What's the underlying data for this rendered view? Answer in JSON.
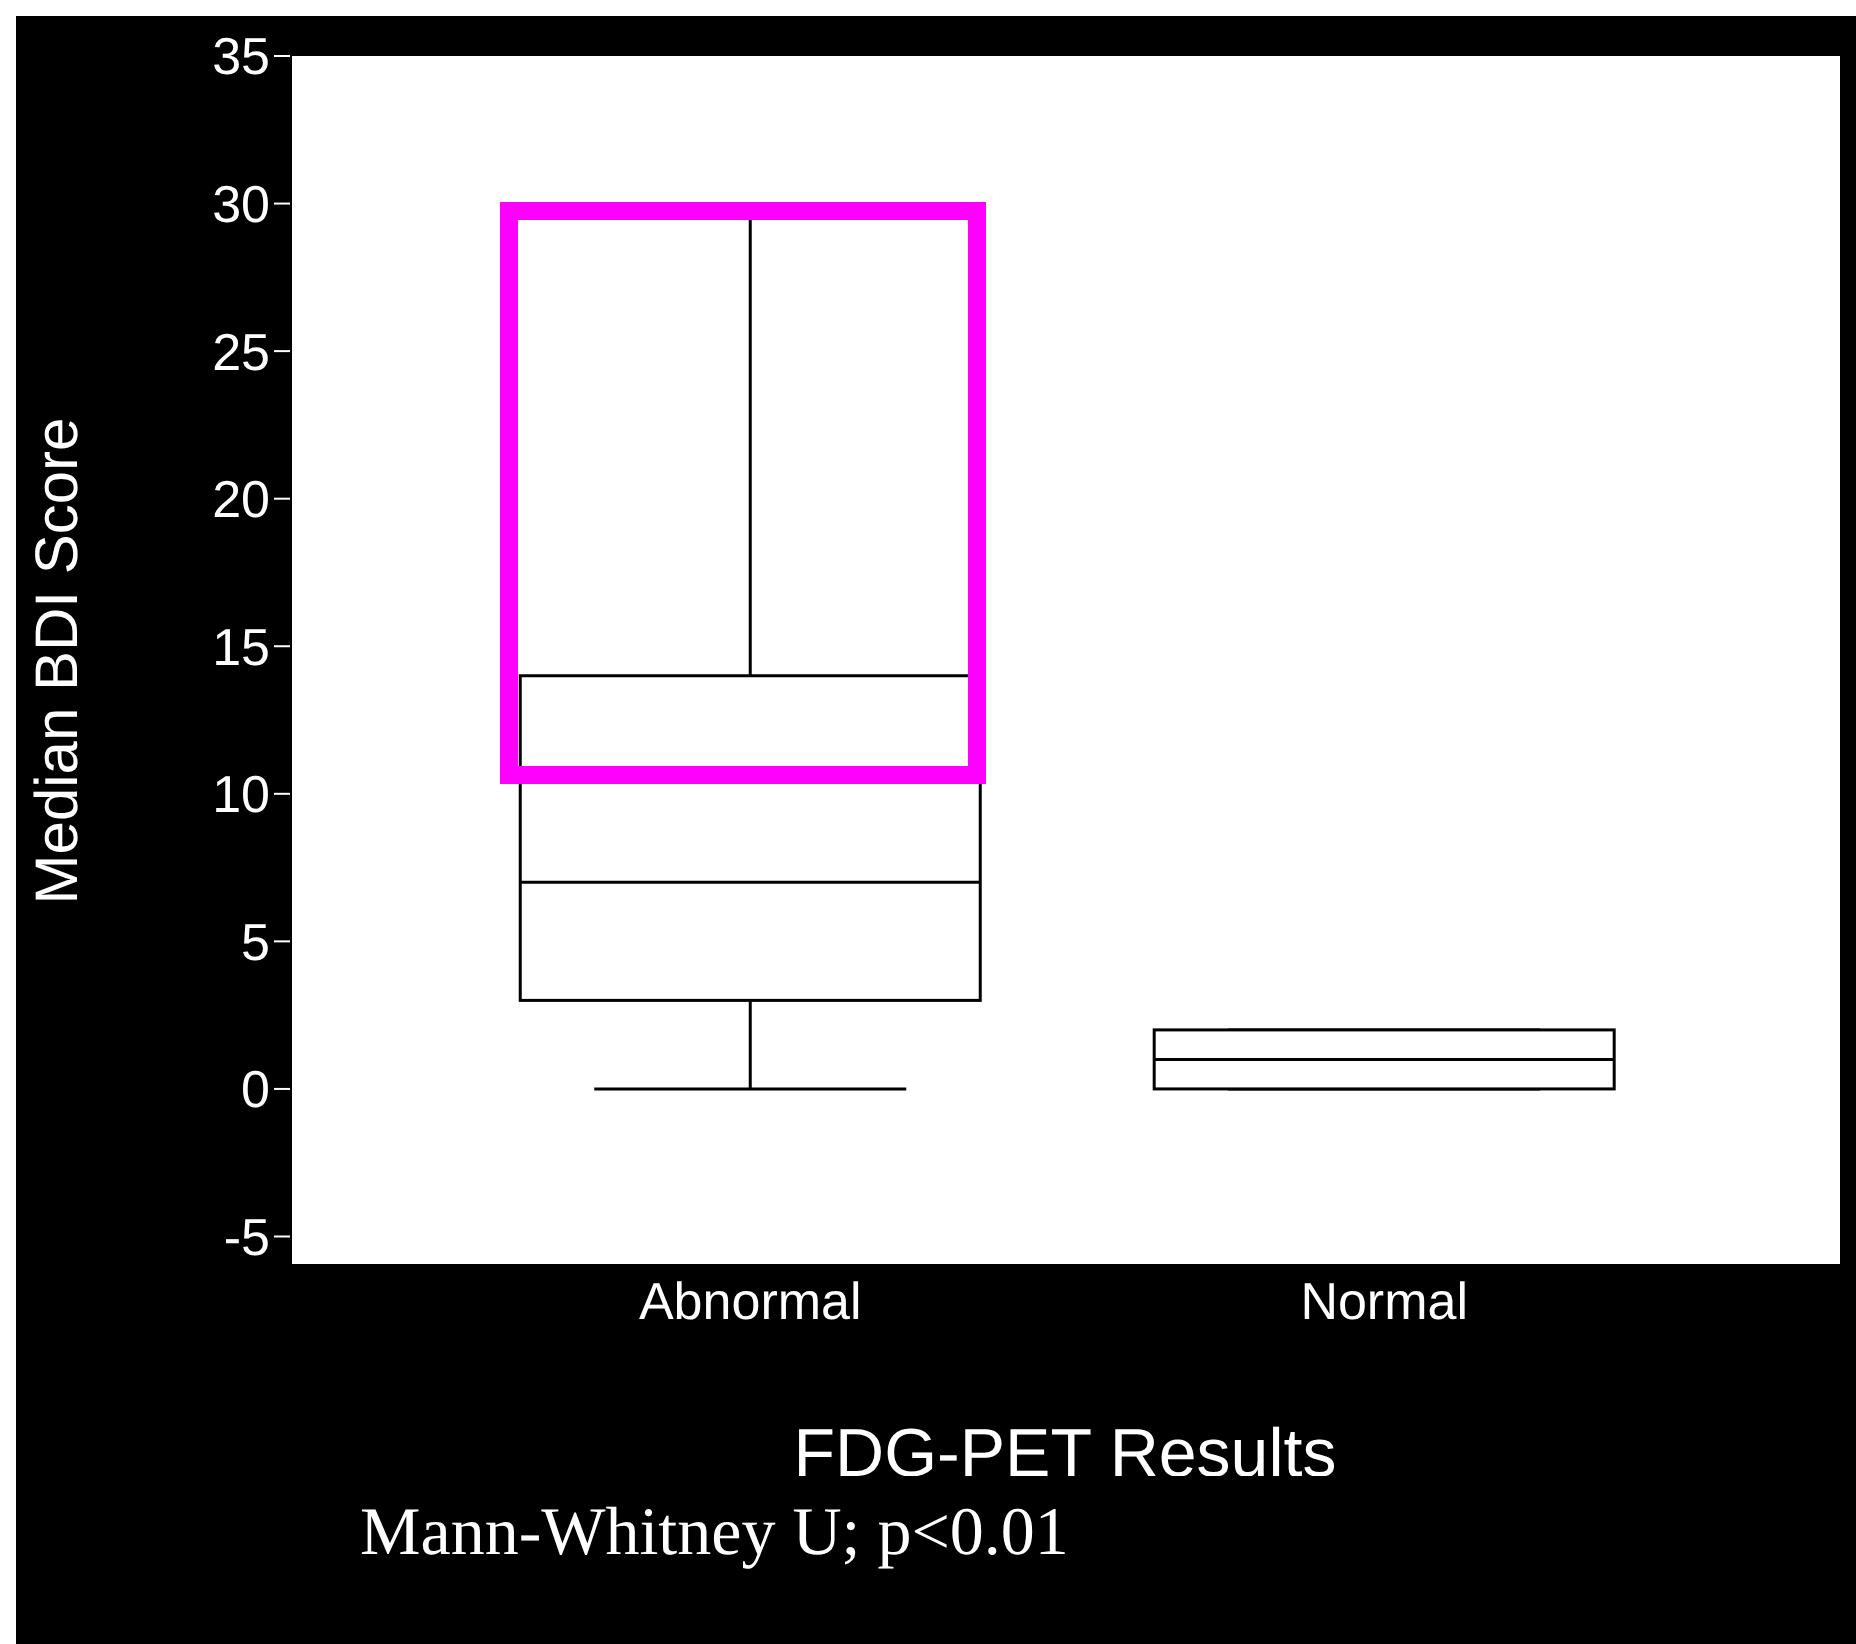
{
  "chart_data": {
    "type": "box",
    "xlabel": "FDG-PET Results",
    "ylabel": "Median BDI Score",
    "categories": [
      "Abnormal",
      "Normal"
    ],
    "boxes": [
      {
        "low": 0,
        "q1": 3,
        "median": 7,
        "q3": 14,
        "high": 30
      },
      {
        "low": 0,
        "q1": 0,
        "median": 1,
        "q3": 2,
        "high": 2
      }
    ],
    "ylim": [
      -6,
      35
    ],
    "yticks": [
      -5,
      0,
      5,
      10,
      15,
      20,
      25,
      30,
      35
    ],
    "grid": false,
    "legend": false,
    "annotations": [
      "Mann-Whitney U; p<0.01"
    ]
  }
}
